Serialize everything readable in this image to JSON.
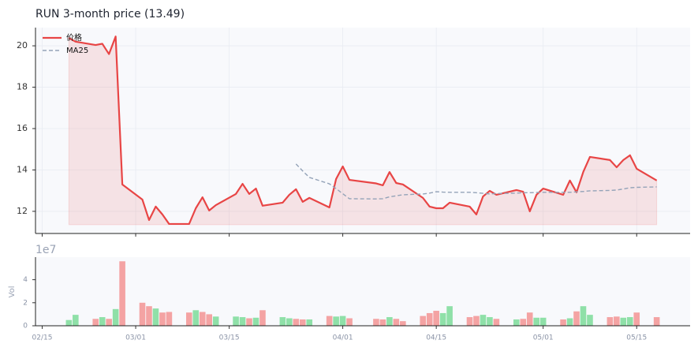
{
  "chart_data": [
    {
      "type": "line",
      "title": "RUN  3-month price (13.49)",
      "x": [
        "02/19",
        "02/20",
        "02/23",
        "02/24",
        "02/25",
        "02/26",
        "02/27",
        "03/02",
        "03/03",
        "03/04",
        "03/05",
        "03/06",
        "03/09",
        "03/10",
        "03/11",
        "03/12",
        "03/13",
        "03/16",
        "03/17",
        "03/18",
        "03/19",
        "03/20",
        "03/23",
        "03/24",
        "03/25",
        "03/26",
        "03/27",
        "03/30",
        "03/31",
        "04/01",
        "04/02",
        "04/06",
        "04/07",
        "04/08",
        "04/09",
        "04/10",
        "04/13",
        "04/14",
        "04/15",
        "04/16",
        "04/17",
        "04/20",
        "04/21",
        "04/22",
        "04/23",
        "04/24",
        "04/27",
        "04/28",
        "04/29",
        "04/30",
        "05/01",
        "05/04",
        "05/05",
        "05/06",
        "05/07",
        "05/08",
        "05/11",
        "05/12",
        "05/13",
        "05/14",
        "05/15",
        "05/18"
      ],
      "series": [
        {
          "name": "价格",
          "color": "#e84545",
          "fill": true,
          "values": [
            20.38,
            20.2,
            20.04,
            20.1,
            19.6,
            20.45,
            13.3,
            12.57,
            11.58,
            12.23,
            11.85,
            11.39,
            11.39,
            12.15,
            12.68,
            12.04,
            12.3,
            12.84,
            13.33,
            12.84,
            13.1,
            12.27,
            12.42,
            12.8,
            13.07,
            12.46,
            12.65,
            12.19,
            13.56,
            14.17,
            13.52,
            13.35,
            13.26,
            13.9,
            13.37,
            13.3,
            12.65,
            12.23,
            12.15,
            12.15,
            12.42,
            12.23,
            11.85,
            12.72,
            12.99,
            12.8,
            13.03,
            12.95,
            12.0,
            12.8,
            13.1,
            12.8,
            13.49,
            12.92,
            13.9,
            14.63,
            14.48,
            14.13,
            14.48,
            14.71,
            14.06,
            13.49
          ]
        },
        {
          "name": "MA25",
          "color": "#94a3b8",
          "dashed": true,
          "values": [
            null,
            null,
            null,
            null,
            null,
            null,
            null,
            null,
            null,
            null,
            null,
            null,
            null,
            null,
            null,
            null,
            null,
            null,
            null,
            null,
            null,
            null,
            null,
            null,
            14.29,
            13.95,
            13.64,
            13.33,
            13.1,
            12.85,
            12.61,
            12.6,
            12.61,
            12.7,
            12.75,
            12.8,
            12.84,
            12.88,
            12.95,
            12.93,
            12.92,
            12.92,
            12.9,
            12.87,
            12.84,
            12.86,
            12.88,
            12.9,
            12.9,
            12.91,
            12.92,
            12.92,
            12.92,
            12.94,
            12.96,
            12.99,
            13.01,
            13.03,
            13.08,
            13.14,
            13.16,
            13.18
          ]
        }
      ],
      "xlim": [
        "02/14",
        "05/23"
      ],
      "xticks": [
        "02/15",
        "03/01",
        "03/15",
        "04/01",
        "04/15",
        "05/01",
        "05/15"
      ],
      "ylim": [
        10.93,
        20.88
      ],
      "yticks": [
        12,
        14,
        16,
        18,
        20
      ],
      "grid": true,
      "legend": "upper left"
    },
    {
      "type": "bar",
      "ylabel": "Vol",
      "offset_label": "1e7",
      "x": [
        "02/19",
        "02/20",
        "02/23",
        "02/24",
        "02/25",
        "02/26",
        "02/27",
        "03/02",
        "03/03",
        "03/04",
        "03/05",
        "03/06",
        "03/09",
        "03/10",
        "03/11",
        "03/12",
        "03/13",
        "03/16",
        "03/17",
        "03/18",
        "03/19",
        "03/20",
        "03/23",
        "03/24",
        "03/25",
        "03/26",
        "03/27",
        "03/30",
        "03/31",
        "04/01",
        "04/02",
        "04/06",
        "04/07",
        "04/08",
        "04/09",
        "04/10",
        "04/13",
        "04/14",
        "04/15",
        "04/16",
        "04/17",
        "04/20",
        "04/21",
        "04/22",
        "04/23",
        "04/24",
        "04/27",
        "04/28",
        "04/29",
        "04/30",
        "05/01",
        "05/04",
        "05/05",
        "05/06",
        "05/07",
        "05/08",
        "05/11",
        "05/12",
        "05/13",
        "05/14",
        "05/15",
        "05/18"
      ],
      "values": [
        0.5,
        0.95,
        0.6,
        0.75,
        0.6,
        1.45,
        5.6,
        2.0,
        1.7,
        1.5,
        1.15,
        1.2,
        1.15,
        1.35,
        1.2,
        1.0,
        0.8,
        0.8,
        0.75,
        0.65,
        0.7,
        1.35,
        0.75,
        0.65,
        0.6,
        0.55,
        0.55,
        0.85,
        0.8,
        0.85,
        0.65,
        0.6,
        0.55,
        0.75,
        0.6,
        0.4,
        0.85,
        1.1,
        1.3,
        1.1,
        1.7,
        0.75,
        0.85,
        0.95,
        0.75,
        0.6,
        0.55,
        0.6,
        1.15,
        0.7,
        0.7,
        0.55,
        0.65,
        1.25,
        1.7,
        0.95,
        0.75,
        0.8,
        0.7,
        0.75,
        1.15,
        0.75
      ],
      "colors": [
        "#8fe0a8",
        "#8fe0a8",
        "#f4a3a3",
        "#8fe0a8",
        "#f4a3a3",
        "#8fe0a8",
        "#f4a3a3",
        "#f4a3a3",
        "#f4a3a3",
        "#8fe0a8",
        "#f4a3a3",
        "#f4a3a3",
        "#f4a3a3",
        "#8fe0a8",
        "#f4a3a3",
        "#f4a3a3",
        "#8fe0a8",
        "#8fe0a8",
        "#8fe0a8",
        "#f4a3a3",
        "#8fe0a8",
        "#f4a3a3",
        "#8fe0a8",
        "#8fe0a8",
        "#f4a3a3",
        "#f4a3a3",
        "#8fe0a8",
        "#f4a3a3",
        "#8fe0a8",
        "#8fe0a8",
        "#f4a3a3",
        "#f4a3a3",
        "#f4a3a3",
        "#8fe0a8",
        "#f4a3a3",
        "#f4a3a3",
        "#f4a3a3",
        "#f4a3a3",
        "#f4a3a3",
        "#8fe0a8",
        "#8fe0a8",
        "#f4a3a3",
        "#f4a3a3",
        "#8fe0a8",
        "#8fe0a8",
        "#f4a3a3",
        "#8fe0a8",
        "#f4a3a3",
        "#f4a3a3",
        "#8fe0a8",
        "#8fe0a8",
        "#f4a3a3",
        "#8fe0a8",
        "#f4a3a3",
        "#8fe0a8",
        "#8fe0a8",
        "#f4a3a3",
        "#f4a3a3",
        "#8fe0a8",
        "#8fe0a8",
        "#f4a3a3",
        "#f4a3a3"
      ],
      "xlim": [
        "02/14",
        "05/23"
      ],
      "xticks": [
        "02/15",
        "03/01",
        "03/15",
        "04/01",
        "04/15",
        "05/01",
        "05/15"
      ],
      "ylim": [
        0,
        5.96
      ],
      "yticks": [
        0,
        2,
        4
      ]
    }
  ]
}
